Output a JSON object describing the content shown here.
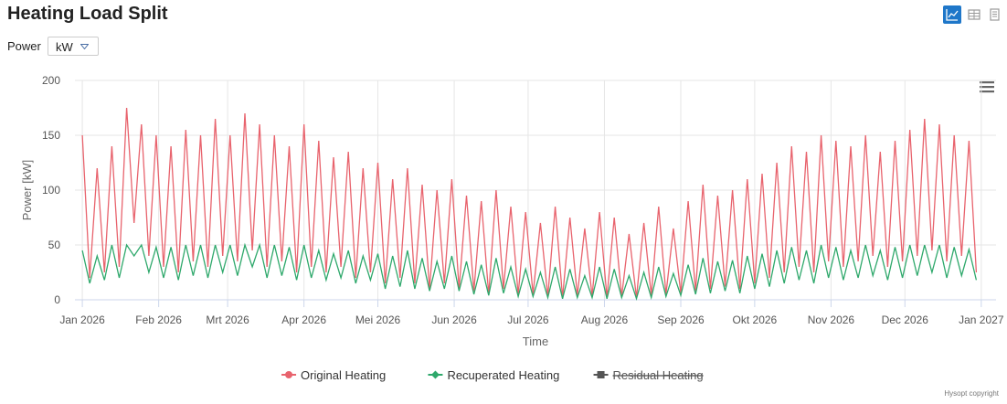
{
  "page": {
    "title": "Heating Load Split",
    "filter_label": "Power",
    "filter_value": "kW"
  },
  "chart_data": {
    "type": "line",
    "title": "Heating Load Split",
    "x_label": "Time",
    "y_label": "Power [kW]",
    "credits": "Hysopt copyright",
    "xlim": [
      -3,
      371
    ],
    "ylim": [
      0,
      200
    ],
    "xticks": [
      {
        "value": 0,
        "label": "Jan 2026"
      },
      {
        "value": 31,
        "label": "Feb 2026"
      },
      {
        "value": 59,
        "label": "Mrt 2026"
      },
      {
        "value": 90,
        "label": "Apr 2026"
      },
      {
        "value": 120,
        "label": "Mei 2026"
      },
      {
        "value": 151,
        "label": "Jun 2026"
      },
      {
        "value": 181,
        "label": "Jul 2026"
      },
      {
        "value": 212,
        "label": "Aug 2026"
      },
      {
        "value": 243,
        "label": "Sep 2026"
      },
      {
        "value": 273,
        "label": "Okt 2026"
      },
      {
        "value": 304,
        "label": "Nov 2026"
      },
      {
        "value": 334,
        "label": "Dec 2026"
      },
      {
        "value": 365,
        "label": "Jan 2027"
      }
    ],
    "yticks": [
      0,
      50,
      100,
      150,
      200
    ],
    "grid": true,
    "legend": "bottom",
    "x": [
      0,
      3,
      6,
      9,
      12,
      15,
      18,
      21,
      24,
      27,
      30,
      33,
      36,
      39,
      42,
      45,
      48,
      51,
      54,
      57,
      60,
      63,
      66,
      69,
      72,
      75,
      78,
      81,
      84,
      87,
      90,
      93,
      96,
      99,
      102,
      105,
      108,
      111,
      114,
      117,
      120,
      123,
      126,
      129,
      132,
      135,
      138,
      141,
      144,
      147,
      150,
      153,
      156,
      159,
      162,
      165,
      168,
      171,
      174,
      177,
      180,
      183,
      186,
      189,
      192,
      195,
      198,
      201,
      204,
      207,
      210,
      213,
      216,
      219,
      222,
      225,
      228,
      231,
      234,
      237,
      240,
      243,
      246,
      249,
      252,
      255,
      258,
      261,
      264,
      267,
      270,
      273,
      276,
      279,
      282,
      285,
      288,
      291,
      294,
      297,
      300,
      303,
      306,
      309,
      312,
      315,
      318,
      321,
      324,
      327,
      330,
      333,
      336,
      339,
      342,
      345,
      348,
      351,
      354,
      357,
      360,
      363
    ],
    "series": [
      {
        "name": "Original Heating",
        "color": "#e8636d",
        "marker": "circle",
        "visible": true,
        "values": [
          150,
          20,
          120,
          25,
          140,
          30,
          175,
          70,
          160,
          40,
          150,
          30,
          140,
          25,
          155,
          35,
          150,
          30,
          165,
          40,
          150,
          35,
          170,
          45,
          160,
          30,
          150,
          35,
          140,
          25,
          160,
          30,
          145,
          25,
          130,
          30,
          135,
          20,
          120,
          25,
          125,
          15,
          110,
          20,
          120,
          15,
          105,
          10,
          100,
          15,
          110,
          10,
          95,
          8,
          90,
          5,
          100,
          10,
          85,
          5,
          80,
          5,
          70,
          3,
          85,
          2,
          75,
          4,
          65,
          3,
          80,
          2,
          75,
          3,
          60,
          2,
          70,
          4,
          85,
          5,
          65,
          6,
          90,
          8,
          105,
          10,
          95,
          12,
          100,
          10,
          110,
          15,
          115,
          20,
          125,
          25,
          140,
          30,
          135,
          25,
          150,
          35,
          145,
          30,
          140,
          35,
          150,
          40,
          135,
          30,
          145,
          35,
          155,
          40,
          165,
          45,
          160,
          35,
          150,
          40,
          145,
          25
        ]
      },
      {
        "name": "Recuperated Heating",
        "color": "#2ea86b",
        "marker": "diamond",
        "visible": true,
        "values": [
          45,
          15,
          40,
          18,
          50,
          20,
          50,
          40,
          50,
          25,
          48,
          20,
          48,
          18,
          50,
          22,
          50,
          20,
          50,
          25,
          50,
          22,
          50,
          30,
          50,
          20,
          50,
          22,
          48,
          18,
          50,
          20,
          45,
          18,
          42,
          20,
          45,
          15,
          40,
          18,
          42,
          10,
          40,
          12,
          45,
          10,
          38,
          8,
          35,
          10,
          40,
          8,
          35,
          5,
          32,
          4,
          38,
          6,
          30,
          3,
          28,
          3,
          25,
          2,
          30,
          1,
          28,
          2,
          22,
          2,
          30,
          1,
          28,
          2,
          22,
          1,
          25,
          2,
          30,
          3,
          24,
          4,
          32,
          5,
          38,
          6,
          35,
          8,
          36,
          6,
          40,
          10,
          42,
          12,
          45,
          15,
          48,
          18,
          45,
          15,
          50,
          20,
          48,
          18,
          45,
          20,
          50,
          22,
          45,
          18,
          48,
          20,
          50,
          22,
          50,
          25,
          50,
          20,
          48,
          22,
          46,
          18
        ]
      },
      {
        "name": "Residual Heating",
        "color": "#555555",
        "marker": "square",
        "visible": false
      }
    ]
  }
}
